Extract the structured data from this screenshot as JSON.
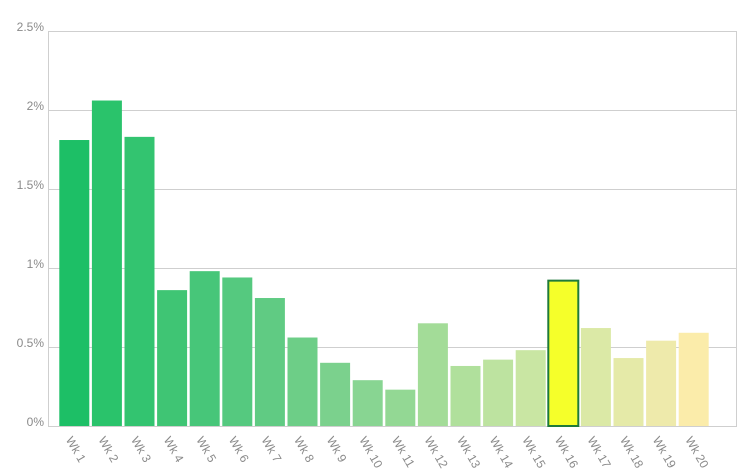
{
  "chart_data": {
    "type": "bar",
    "categories": [
      "Wk 1",
      "Wk 2",
      "Wk 3",
      "Wk 4",
      "Wk 5",
      "Wk 6",
      "Wk 7",
      "Wk 8",
      "Wk 9",
      "Wk 10",
      "Wk 11",
      "Wk 12",
      "Wk 13",
      "Wk 14",
      "Wk 15",
      "Wk 16",
      "Wk 17",
      "Wk 18",
      "Wk 19",
      "Wk 20"
    ],
    "values": [
      1.81,
      2.06,
      1.83,
      0.86,
      0.98,
      0.94,
      0.81,
      0.56,
      0.4,
      0.29,
      0.23,
      0.65,
      0.38,
      0.42,
      0.48,
      0.92,
      0.62,
      0.43,
      0.54,
      0.59
    ],
    "colors": [
      "#1dbf66",
      "#2ac36b",
      "#33c470",
      "#3fc574",
      "#47c679",
      "#55c97f",
      "#60cb83",
      "#6dce87",
      "#7bd18d",
      "#88d592",
      "#93d894",
      "#a3dc98",
      "#b0e09c",
      "#bde3a0",
      "#c9e6a3",
      "#f5ff2a",
      "#dbe9a6",
      "#e5eaa8",
      "#eeeaab",
      "#fbecaa"
    ],
    "highlight": {
      "index": 15,
      "stroke": "#1f7a3a"
    },
    "ylim": [
      0,
      2.5
    ],
    "yticks": [
      {
        "value": 0,
        "label": "0%"
      },
      {
        "value": 0.5,
        "label": "0.5%"
      },
      {
        "value": 1,
        "label": "1%"
      },
      {
        "value": 1.5,
        "label": "1.5%"
      },
      {
        "value": 2,
        "label": "2%"
      },
      {
        "value": 2.5,
        "label": "2.5%"
      }
    ],
    "grid": true
  }
}
